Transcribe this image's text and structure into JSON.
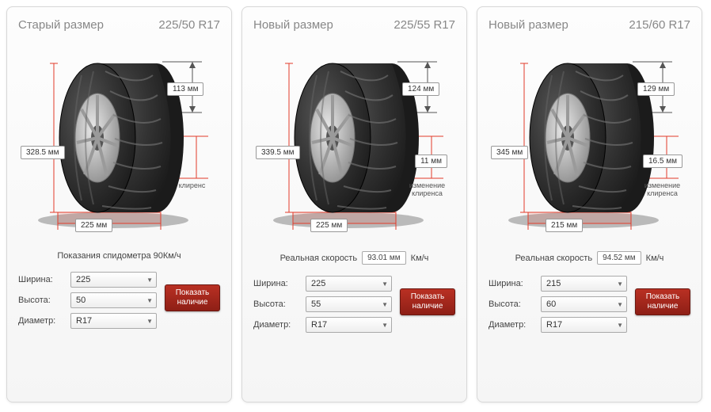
{
  "unit_mm": "мм",
  "button_label": "Показать наличие",
  "labels": {
    "width": "Ширина:",
    "height": "Высота:",
    "diameter": "Диаметр:"
  },
  "cards": [
    {
      "title": "Старый размер",
      "size": "225/50 R17",
      "sidewall_mm": "113 мм",
      "diameter_mm": "328.5 мм",
      "width_mm": "225 мм",
      "clearance_mm": "",
      "clearance_label": "клиренс",
      "speed_text": "Показания спидометра 90Км/ч",
      "speed_box": "",
      "speed_unit": "",
      "width_val": "225",
      "height_val": "50",
      "diam_val": "R17"
    },
    {
      "title": "Новый размер",
      "size": "225/55 R17",
      "sidewall_mm": "124 мм",
      "diameter_mm": "339.5 мм",
      "width_mm": "225 мм",
      "clearance_mm": "11 мм",
      "clearance_label": "изменение клиренса",
      "speed_text": "Реальная скорость",
      "speed_box": "93.01 мм",
      "speed_unit": "Км/ч",
      "width_val": "225",
      "height_val": "55",
      "diam_val": "R17"
    },
    {
      "title": "Новый размер",
      "size": "215/60 R17",
      "sidewall_mm": "129 мм",
      "diameter_mm": "345 мм",
      "width_mm": "215 мм",
      "clearance_mm": "16.5 мм",
      "clearance_label": "изменение клиренса",
      "speed_text": "Реальная скорость",
      "speed_box": "94.52 мм",
      "speed_unit": "Км/ч",
      "width_val": "215",
      "height_val": "60",
      "diam_val": "R17"
    }
  ],
  "colors": {
    "tire_dark": "#1b1b1b",
    "tire_mid": "#333333",
    "tread": "#555555",
    "rim": "#bfbfbf",
    "rim_dark": "#8a8a8a",
    "guide_red": "#e23b2a",
    "guide_red_fill": "rgba(226,59,42,0.15)",
    "ground_shadow": "rgba(0,0,0,0.25)"
  }
}
